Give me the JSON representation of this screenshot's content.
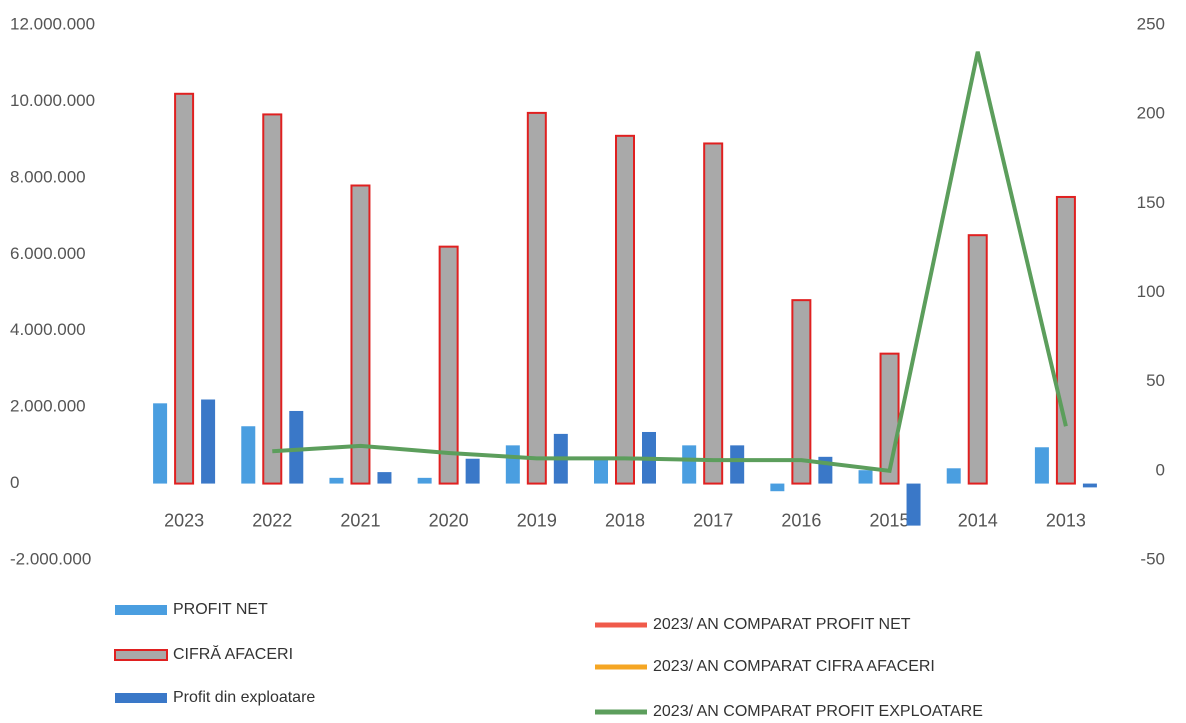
{
  "chart_data": {
    "type": "bar",
    "categories": [
      "2023",
      "2022",
      "2021",
      "2020",
      "2019",
      "2018",
      "2017",
      "2016",
      "2015",
      "2014",
      "2013"
    ],
    "series": [
      {
        "name": "PROFIT NET",
        "color": "#4a9ee0",
        "values": [
          2100000,
          1500000,
          150000,
          150000,
          1000000,
          700000,
          1000000,
          -200000,
          350000,
          400000,
          950000
        ]
      },
      {
        "name": "CIFRĂ AFACERI",
        "color": "#a9a9a9",
        "stroke": "#e02020",
        "values": [
          10200000,
          9660000,
          7800000,
          6200000,
          9700000,
          9100000,
          8900000,
          4800000,
          3400000,
          6500000,
          7500000
        ]
      },
      {
        "name": "Profit din exploatare",
        "color": "#3a78c8",
        "values": [
          2200000,
          1900000,
          300000,
          650000,
          1300000,
          1350000,
          1000000,
          700000,
          -1100000,
          0,
          -100000
        ]
      },
      {
        "name": "2023/ AN COMPARAT  PROFIT NET",
        "color": "#f05a4a",
        "type": "line",
        "axis": "y2",
        "values": [
          null,
          null,
          null,
          null,
          null,
          null,
          null,
          null,
          null,
          null,
          null
        ]
      },
      {
        "name": "2023/ AN COMPARAT  CIFRA AFACERI",
        "color": "#f5a623",
        "type": "line",
        "axis": "y2",
        "values": [
          null,
          null,
          null,
          null,
          null,
          null,
          null,
          null,
          null,
          null,
          null
        ]
      },
      {
        "name": "2023/ AN COMPARAT  PROFIT EXPLOATARE",
        "color": "#5c9e5c",
        "type": "line",
        "axis": "y2",
        "values": [
          null,
          11,
          14,
          10,
          7,
          7,
          6,
          6,
          0,
          235,
          25
        ]
      }
    ],
    "ylim": [
      -2000000,
      12000000
    ],
    "yticks": [
      {
        "value": -2000000,
        "label": "-2.000.000"
      },
      0,
      {
        "value": 2000000,
        "label": "2.000.000"
      },
      {
        "value": 4000000,
        "label": "4.000.000"
      },
      {
        "value": 6000000,
        "label": "6.000.000"
      },
      {
        "value": 8000000,
        "label": "8.000.000"
      },
      {
        "value": 10000000,
        "label": "10.000.000"
      },
      {
        "value": 12000000,
        "label": "12.000.000"
      }
    ],
    "y2lim": [
      -50,
      250
    ],
    "y2ticks": [
      -50,
      0,
      50,
      100,
      150,
      200,
      250
    ]
  }
}
